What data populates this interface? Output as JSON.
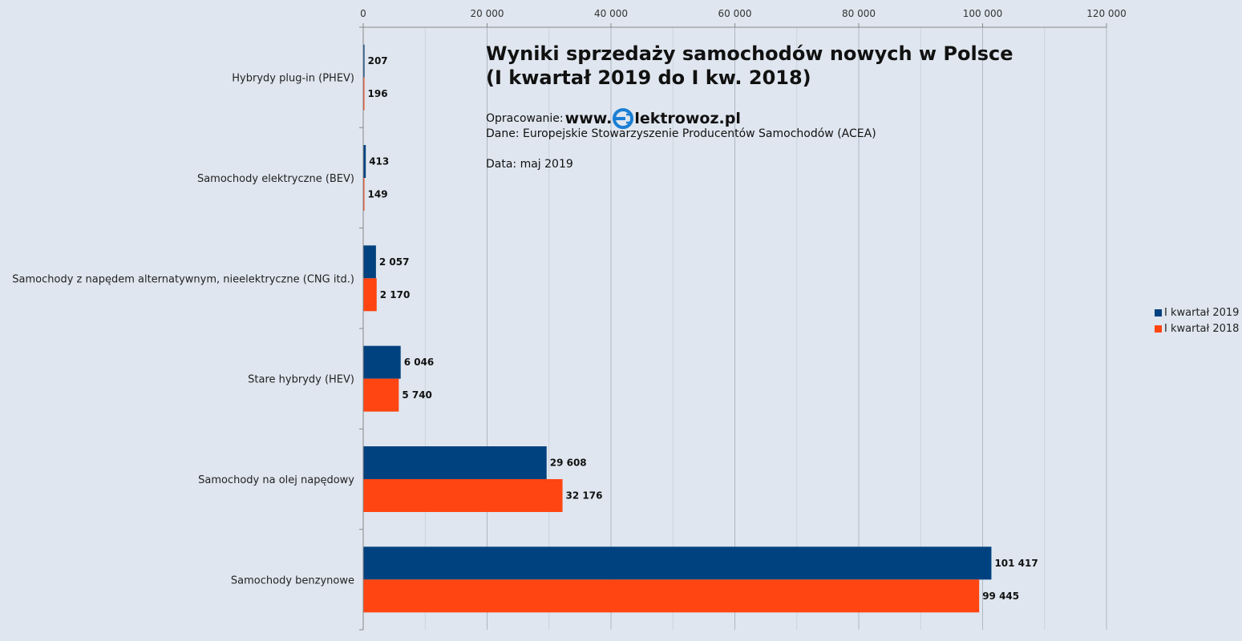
{
  "chart_data": {
    "type": "bar",
    "orientation": "horizontal",
    "title": "Wyniki sprzedaży samochodów nowych w Polsce (I kwartał 2019 do I kw. 2018)",
    "title_lines": [
      "Wyniki sprzedaży samochodów nowych w Polsce",
      "(I kwartał 2019 do I kw. 2018)"
    ],
    "categories": [
      "Hybrydy plug-in (PHEV)",
      "Samochody elektryczne (BEV)",
      "Samochody z napędem alternatywnym, nieelektryczne (CNG itd.)",
      "Stare hybrydy (HEV)",
      "Samochody na olej napędowy",
      "Samochody benzynowe"
    ],
    "series": [
      {
        "name": "I kwartał 2019",
        "color": "#00427f",
        "values": [
          207,
          413,
          2057,
          6046,
          29608,
          101417
        ],
        "labels": [
          "207",
          "413",
          "2 057",
          "6 046",
          "29 608",
          "101 417"
        ]
      },
      {
        "name": "I kwartał 2018",
        "color": "#ff4511",
        "values": [
          196,
          149,
          2170,
          5740,
          32176,
          99445
        ],
        "labels": [
          "196",
          "149",
          "2 170",
          "5 740",
          "32 176",
          "99 445"
        ]
      }
    ],
    "x_ticks": [
      0,
      20000,
      40000,
      60000,
      80000,
      100000,
      120000
    ],
    "x_tick_labels": [
      "0",
      "20 000",
      "40 000",
      "60 000",
      "80 000",
      "100 000",
      "120 000"
    ],
    "xlim": [
      0,
      120000
    ],
    "grid": true,
    "legend_position": "right"
  },
  "info": {
    "credit_label": "Opracowanie:",
    "brand_prefix": "www.",
    "brand_suffix": "lektrowoz.pl",
    "brand_icon": "electric-plug-e-icon",
    "source": "Dane: Europejskie Stowarzyszenie Producentów Samochodów (ACEA)",
    "date": "Data: maj 2019"
  }
}
